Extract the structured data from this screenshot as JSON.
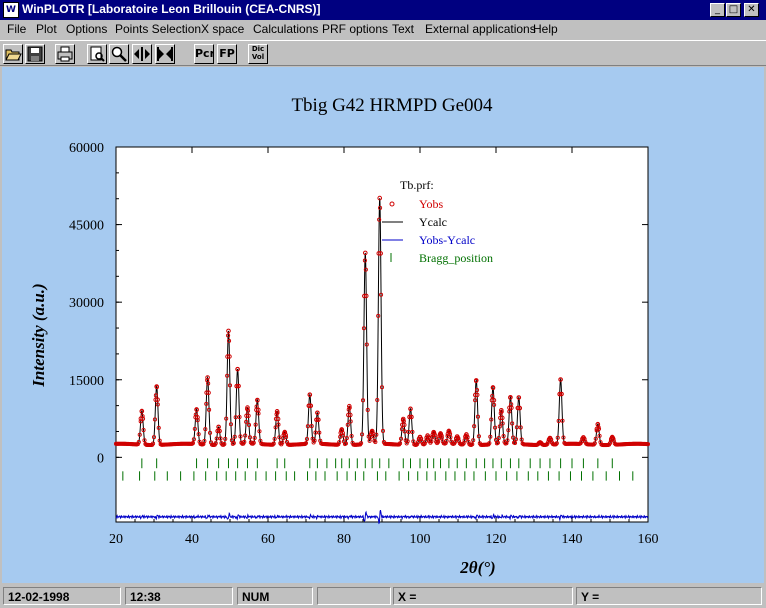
{
  "window": {
    "title": "WinPLOTR [Laboratoire Leon Brillouin (CEA-CNRS)]",
    "app_icon": "winplotr-app-icon",
    "buttons": [
      "minimize-icon",
      "maximize-icon",
      "close-icon"
    ]
  },
  "menu": {
    "items": [
      "File",
      "Plot",
      "Options",
      "Points Selection",
      "X space",
      "Calculations",
      "PRF options",
      "Text",
      "External applications",
      "Help"
    ]
  },
  "toolbar": {
    "buttons": [
      {
        "icon": "open-folder-icon"
      },
      {
        "icon": "save-disk-icon"
      },
      {
        "icon": "printer-icon"
      },
      {
        "icon": "zoom-page-icon"
      },
      {
        "icon": "magnifier-icon"
      },
      {
        "icon": "move-horizontal-icon"
      },
      {
        "icon": "resize-horizontal-icon"
      },
      {
        "label": "Pcr"
      },
      {
        "label": "FP"
      },
      {
        "label": "Dic Vol"
      }
    ]
  },
  "colors": {
    "background": "#a6caf0",
    "titlebar": "#000080",
    "yobs": "#d00000",
    "ycalc": "#000000",
    "diff": "#0000c8",
    "bragg": "#007000"
  },
  "chart_data": {
    "type": "line",
    "title": "Tbig  G42 HRMPD Ge004",
    "xlabel": "2θ(°)",
    "ylabel": "Intensity (a.u.)",
    "xlim": [
      20,
      160
    ],
    "ylim": [
      -12500,
      60000
    ],
    "x_ticks": [
      20,
      40,
      60,
      80,
      100,
      120,
      140,
      160
    ],
    "y_ticks": [
      0,
      15000,
      30000,
      45000,
      60000
    ],
    "legend_title": "Tb.prf:",
    "legend_position": "top-center",
    "background_level": 2500,
    "series": [
      {
        "name": "Yobs",
        "style": "open-circles",
        "color": "#d00000"
      },
      {
        "name": "Ycalc",
        "style": "line",
        "color": "#000000"
      },
      {
        "name": "Yobs-Ycalc",
        "style": "line",
        "color": "#0000c8",
        "offset": -11500
      },
      {
        "name": "Bragg_position",
        "style": "ticks",
        "color": "#007000"
      }
    ],
    "peaks": [
      {
        "x": 26.8,
        "y": 9000
      },
      {
        "x": 30.7,
        "y": 13800
      },
      {
        "x": 41.2,
        "y": 9200
      },
      {
        "x": 44.1,
        "y": 15500
      },
      {
        "x": 47.0,
        "y": 6000
      },
      {
        "x": 49.6,
        "y": 24500
      },
      {
        "x": 52.0,
        "y": 17000
      },
      {
        "x": 54.6,
        "y": 9500
      },
      {
        "x": 57.2,
        "y": 11000
      },
      {
        "x": 62.4,
        "y": 9000
      },
      {
        "x": 64.4,
        "y": 5000
      },
      {
        "x": 71.0,
        "y": 12000
      },
      {
        "x": 73.0,
        "y": 8500
      },
      {
        "x": 79.4,
        "y": 5500
      },
      {
        "x": 81.4,
        "y": 10000
      },
      {
        "x": 85.6,
        "y": 39500
      },
      {
        "x": 87.4,
        "y": 5000
      },
      {
        "x": 89.4,
        "y": 50000
      },
      {
        "x": 95.6,
        "y": 7500
      },
      {
        "x": 97.5,
        "y": 9500
      },
      {
        "x": 100.0,
        "y": 4000
      },
      {
        "x": 102.0,
        "y": 4200
      },
      {
        "x": 103.6,
        "y": 4800
      },
      {
        "x": 105.4,
        "y": 4500
      },
      {
        "x": 107.6,
        "y": 5000
      },
      {
        "x": 109.8,
        "y": 4000
      },
      {
        "x": 112.2,
        "y": 4500
      },
      {
        "x": 114.8,
        "y": 15000
      },
      {
        "x": 119.2,
        "y": 13500
      },
      {
        "x": 121.4,
        "y": 9000
      },
      {
        "x": 123.8,
        "y": 11500
      },
      {
        "x": 126.0,
        "y": 11500
      },
      {
        "x": 131.6,
        "y": 3000
      },
      {
        "x": 134.2,
        "y": 3800
      },
      {
        "x": 137.0,
        "y": 15000
      },
      {
        "x": 143.0,
        "y": 3800
      },
      {
        "x": 146.8,
        "y": 6500
      },
      {
        "x": 150.6,
        "y": 4000
      }
    ],
    "bragg_row1": [
      26.8,
      30.7,
      41.2,
      44.1,
      47.0,
      49.6,
      52.0,
      54.6,
      57.2,
      62.4,
      64.4,
      71.0,
      73.0,
      75.5,
      77.8,
      79.4,
      81.4,
      83.5,
      85.6,
      87.4,
      89.4,
      91.8,
      95.6,
      97.5,
      100.0,
      102.0,
      103.6,
      105.4,
      107.6,
      109.8,
      112.2,
      114.8,
      117.0,
      119.2,
      121.4,
      123.8,
      126.0,
      129.0,
      131.6,
      134.2,
      137.0,
      140.0,
      143.0,
      146.8,
      150.6
    ],
    "bragg_row2": [
      21.8,
      26.2,
      30.2,
      33.5,
      37.0,
      40.5,
      43.6,
      46.5,
      49.0,
      51.5,
      54.0,
      56.8,
      59.5,
      62.0,
      64.8,
      67.0,
      70.4,
      72.6,
      75.0,
      78.2,
      80.8,
      83.0,
      85.2,
      88.8,
      91.0,
      94.5,
      97.0,
      99.4,
      101.8,
      104.0,
      106.8,
      109.2,
      111.8,
      114.2,
      117.2,
      120.0,
      122.8,
      125.5,
      128.5,
      131.0,
      133.8,
      136.6,
      139.6,
      142.5,
      145.5,
      149.0,
      152.5,
      156.0
    ]
  },
  "status": {
    "date": "12-02-1998",
    "time": "12:38",
    "num": "NUM",
    "blank": "",
    "x_label": "X =",
    "y_label": "Y ="
  }
}
